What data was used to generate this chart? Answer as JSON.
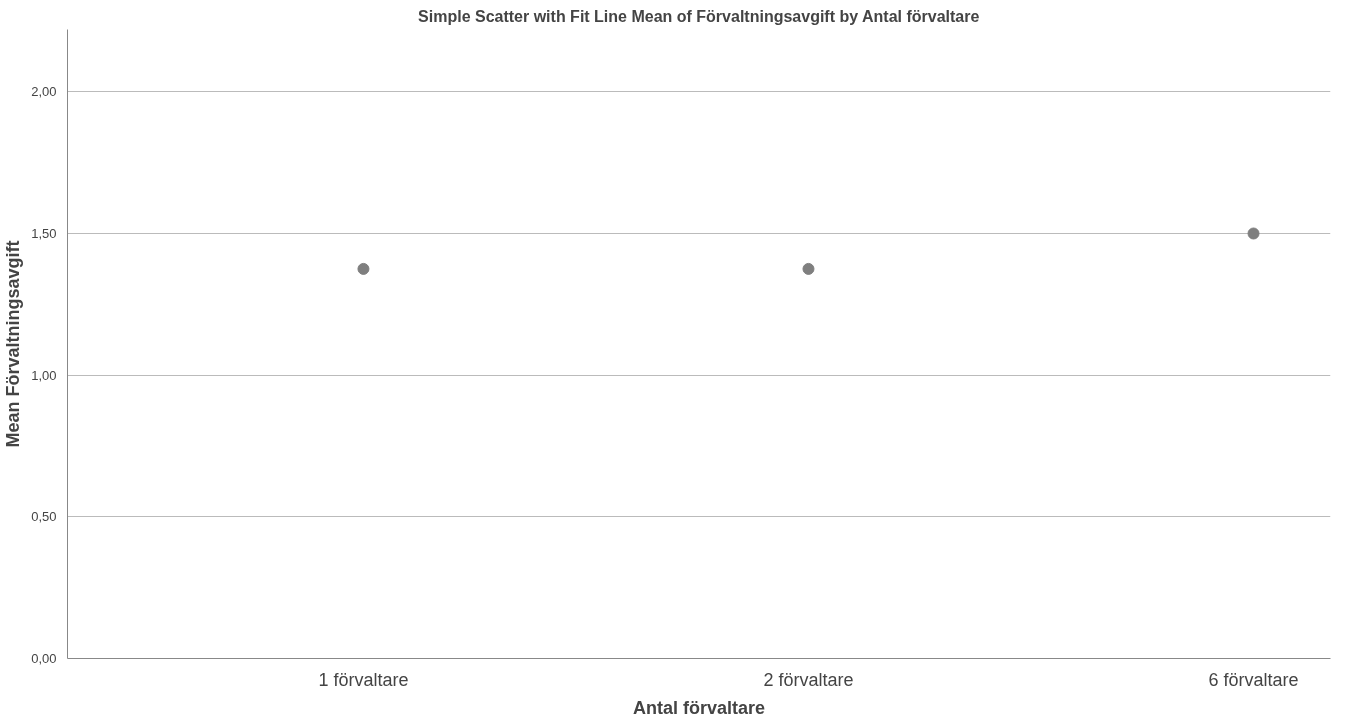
{
  "chart_data": {
    "type": "scatter",
    "title": "Simple Scatter with Fit Line Mean of Förvaltningsavgift by Antal förvaltare",
    "xlabel": "Antal förvaltare",
    "ylabel": "Mean Förvaltningsavgift",
    "categories": [
      "1 förvaltare",
      "2 förvaltare",
      "6 förvaltare"
    ],
    "series": [
      {
        "color": "#7f7f7f",
        "values": [
          1.375,
          1.375,
          1.5
        ]
      }
    ],
    "ylim": [
      0,
      2.22
    ],
    "yticks": [
      {
        "value": 0,
        "label": "0,00"
      },
      {
        "value": 0.5,
        "label": "0,50"
      },
      {
        "value": 1,
        "label": "1,00"
      },
      {
        "value": 1.5,
        "label": "1,50"
      },
      {
        "value": 2,
        "label": "2,00"
      }
    ],
    "grid": "y",
    "marker": "circle"
  }
}
